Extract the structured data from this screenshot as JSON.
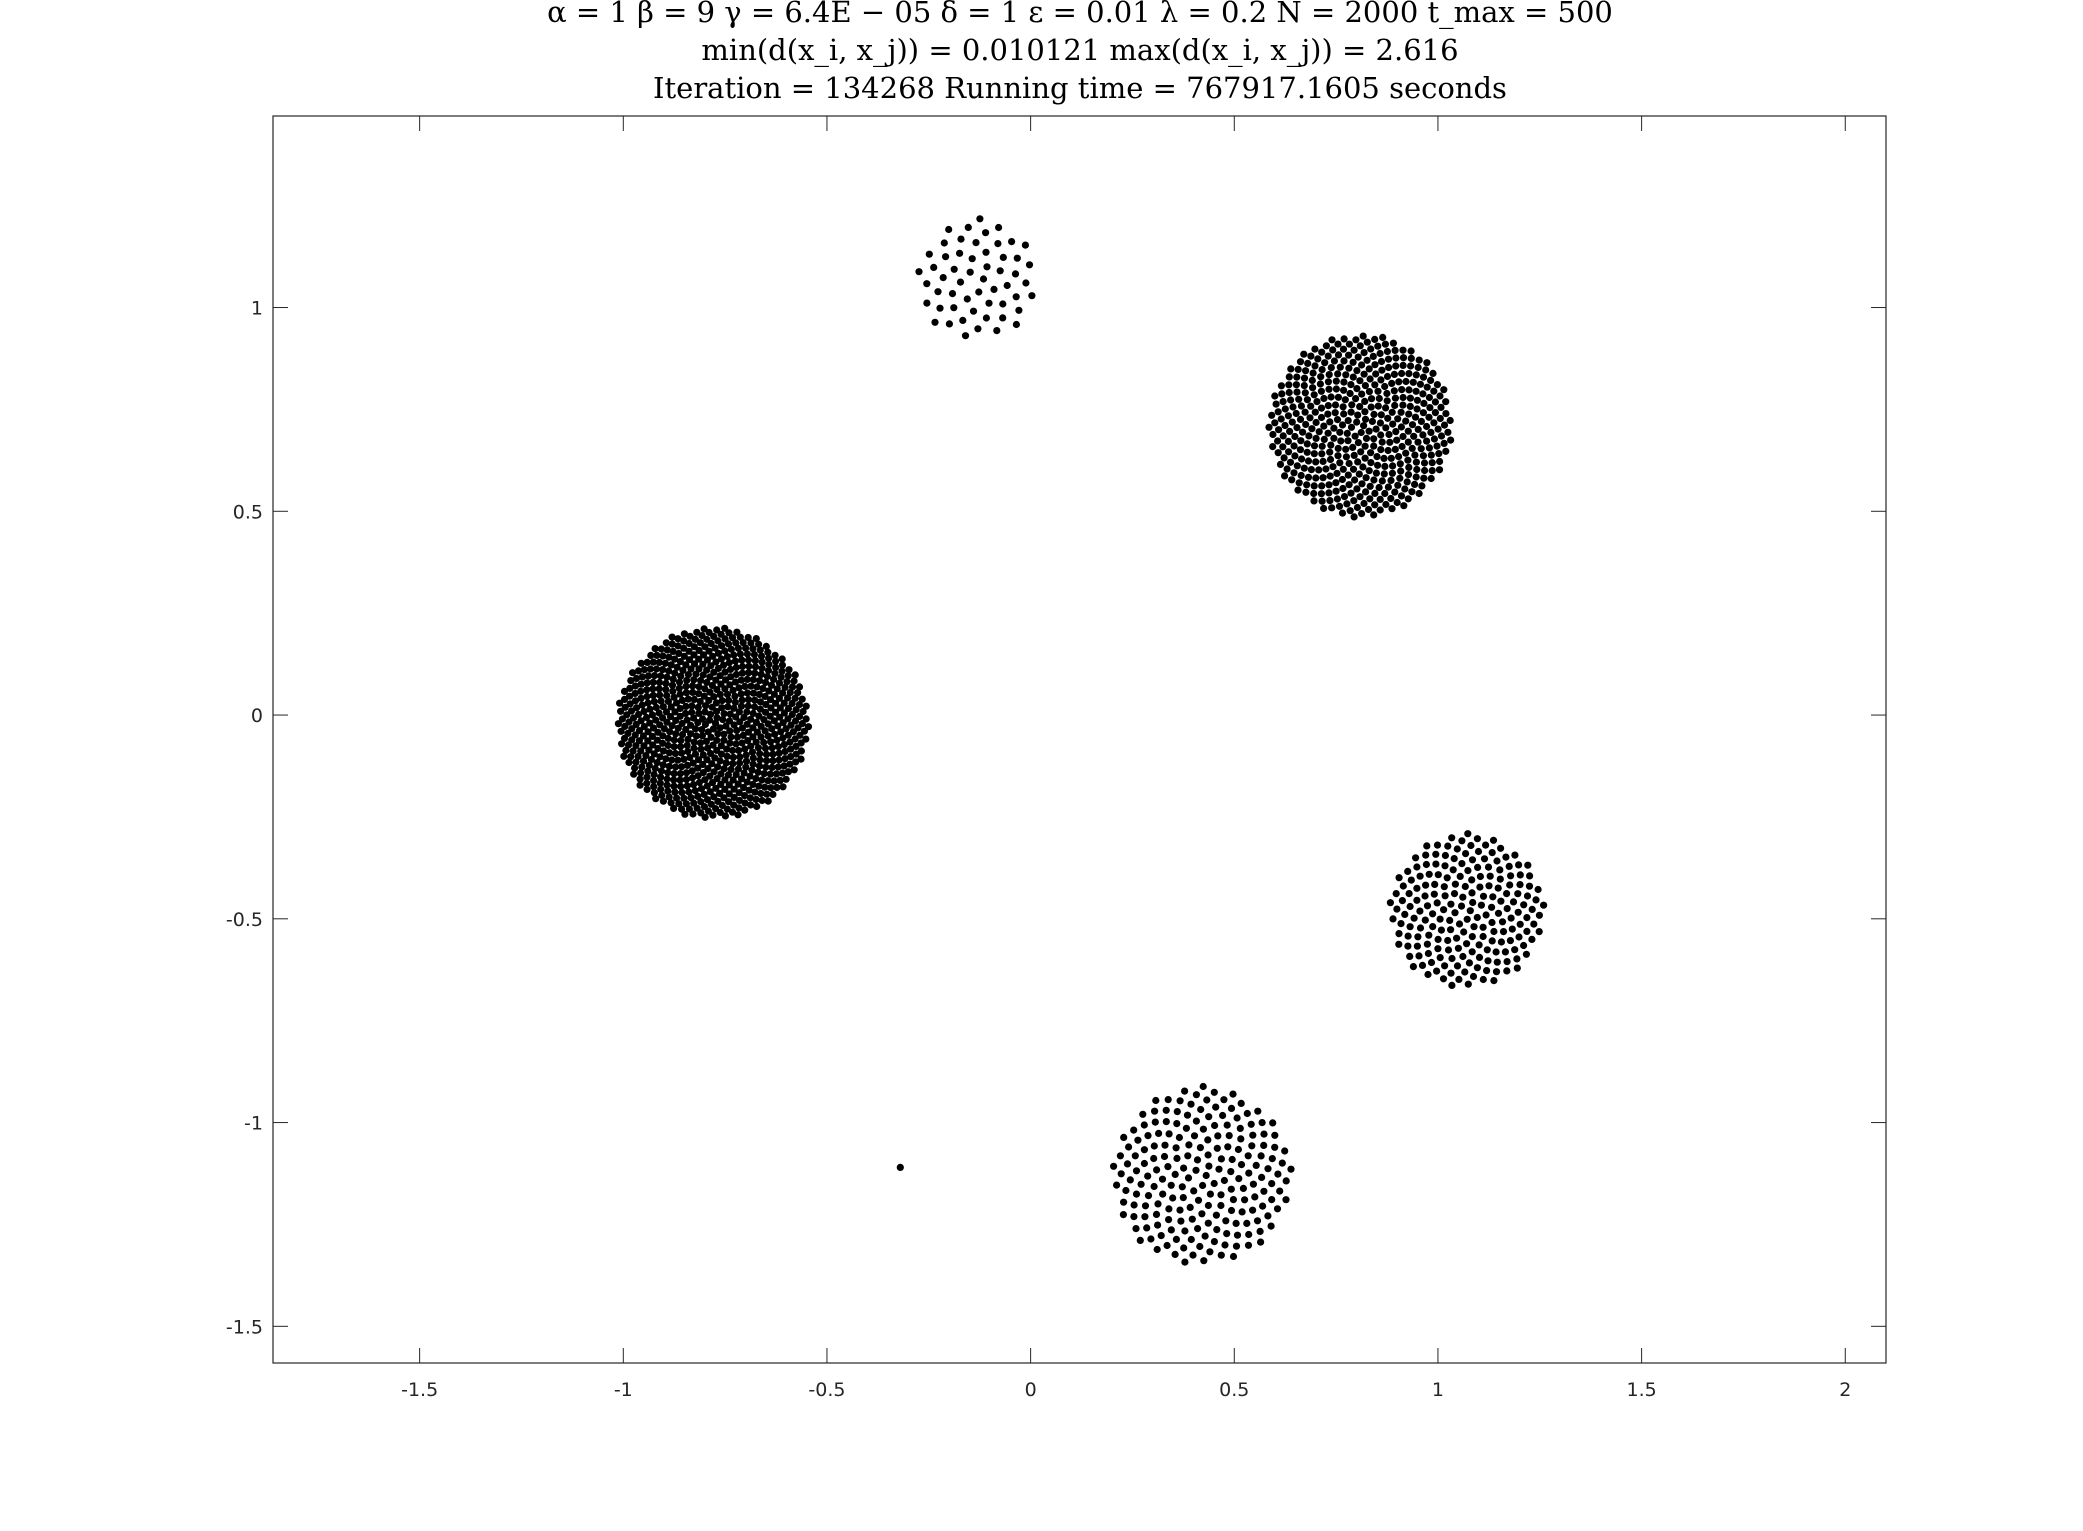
{
  "title": {
    "line1": "α = 1    β = 9    γ = 6.4E − 05    δ = 1    ε = 0.01    λ = 0.2    N = 2000    t_max = 500",
    "line2": "min(d(x_i, x_j)) = 0.010121    max(d(x_i, x_j)) = 2.616",
    "line3": "Iteration = 134268    Running time = 767917.1605 seconds"
  },
  "chart_data": {
    "type": "scatter",
    "title": "α = 1 β = 9 γ = 6.4E−05 δ = 1 ε = 0.01 λ = 0.2 N = 2000 t_max = 500",
    "xlabel": "",
    "ylabel": "",
    "xlim": [
      -1.86,
      2.1
    ],
    "ylim": [
      -1.59,
      1.47
    ],
    "grid": false,
    "marker_color": "#000000",
    "x_ticks": [
      -1.5,
      -1,
      -0.5,
      0,
      0.5,
      1,
      1.5,
      2
    ],
    "x_tick_labels": [
      "-1.5",
      "-1",
      "-0.5",
      "0",
      "0.5",
      "1",
      "1.5",
      "2"
    ],
    "y_ticks": [
      -1.5,
      -1,
      -0.5,
      0,
      0.5,
      1
    ],
    "y_tick_labels": [
      "-1.5",
      "-1",
      "-0.5",
      "0",
      "0.5",
      "1"
    ],
    "clusters": [
      {
        "cx": -0.78,
        "cy": -0.02,
        "r": 0.235,
        "density": "very dense"
      },
      {
        "cx": 0.81,
        "cy": 0.71,
        "r": 0.225,
        "density": "dense"
      },
      {
        "cx": -0.13,
        "cy": 1.07,
        "r": 0.15,
        "density": "sparse"
      },
      {
        "cx": 1.07,
        "cy": -0.48,
        "r": 0.19,
        "density": "medium"
      },
      {
        "cx": 0.42,
        "cy": -1.13,
        "r": 0.22,
        "density": "medium"
      }
    ],
    "isolated_points": [
      {
        "x": -0.32,
        "y": -1.11
      }
    ]
  }
}
